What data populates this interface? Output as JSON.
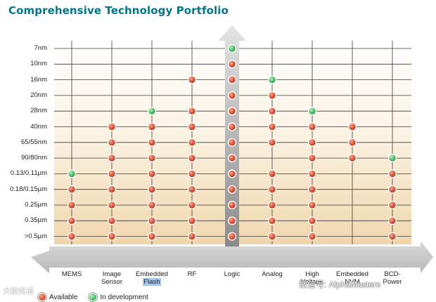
{
  "title": "Comprehensive Technology Portfolio",
  "columns": [
    {
      "id": "mems",
      "label": "MEMS"
    },
    {
      "id": "image-sensor",
      "label": "Image\nSensor"
    },
    {
      "id": "embedded-flash",
      "label": "Embedded\nFlash"
    },
    {
      "id": "rf",
      "label": "RF"
    },
    {
      "id": "logic",
      "label": "Logic"
    },
    {
      "id": "analog",
      "label": "Analog"
    },
    {
      "id": "high",
      "label": "High\nVoltage"
    },
    {
      "id": "embedded-nvm",
      "label": "Embedded\nNVM"
    },
    {
      "id": "bcd",
      "label": "BCD-\nPower"
    }
  ],
  "rows": [
    "7nm",
    "10nm",
    "16nm",
    "20nm",
    "28nm",
    "40nm",
    "65/55nm",
    "90/80nm",
    "0.13/0.11µm",
    "0.18/0.15µm",
    "0.25µm",
    "0.35µm",
    ">0.5µm"
  ],
  "cells": {
    "mems": [
      "",
      "",
      "",
      "",
      "",
      "",
      "",
      "",
      "D",
      "A",
      "A",
      "A",
      "A"
    ],
    "image-sensor": [
      "",
      "",
      "",
      "",
      "",
      "A",
      "A",
      "A",
      "A",
      "A",
      "A",
      "A",
      "A"
    ],
    "embedded-flash": [
      "",
      "",
      "",
      "",
      "D",
      "A",
      "A",
      "A",
      "A",
      "A",
      "A",
      "A",
      "A"
    ],
    "rf": [
      "",
      "",
      "A",
      "",
      "A",
      "A",
      "A",
      "A",
      "A",
      "A",
      "A",
      "A",
      "A"
    ],
    "logic": [
      "D",
      "A",
      "A",
      "A",
      "A",
      "A",
      "A",
      "A",
      "A",
      "A",
      "A",
      "A",
      "A"
    ],
    "analog": [
      "",
      "",
      "D",
      "A",
      "A",
      "A",
      "A",
      "",
      "A",
      "A",
      "A",
      "A",
      "A"
    ],
    "high": [
      "",
      "",
      "",
      "",
      "D",
      "A",
      "A",
      "A",
      "A",
      "A",
      "A",
      "A",
      "A"
    ],
    "embedded-nvm": [
      "",
      "",
      "",
      "",
      "",
      "A",
      "A",
      "A",
      "",
      "",
      "",
      "",
      ""
    ],
    "bcd": [
      "",
      "",
      "",
      "",
      "",
      "",
      "",
      "D",
      "A",
      "A",
      "A",
      "A",
      "A"
    ]
  },
  "legend": {
    "available": "Available",
    "in_development": "In development"
  },
  "colors": {
    "title": "#00788c",
    "available": "#d9553a",
    "in_development": "#4cbf6a",
    "arrow": "#c6c6c6"
  },
  "watermark_right": "微信号: AlphaMasters",
  "watermark_left": "大鹏说道"
}
